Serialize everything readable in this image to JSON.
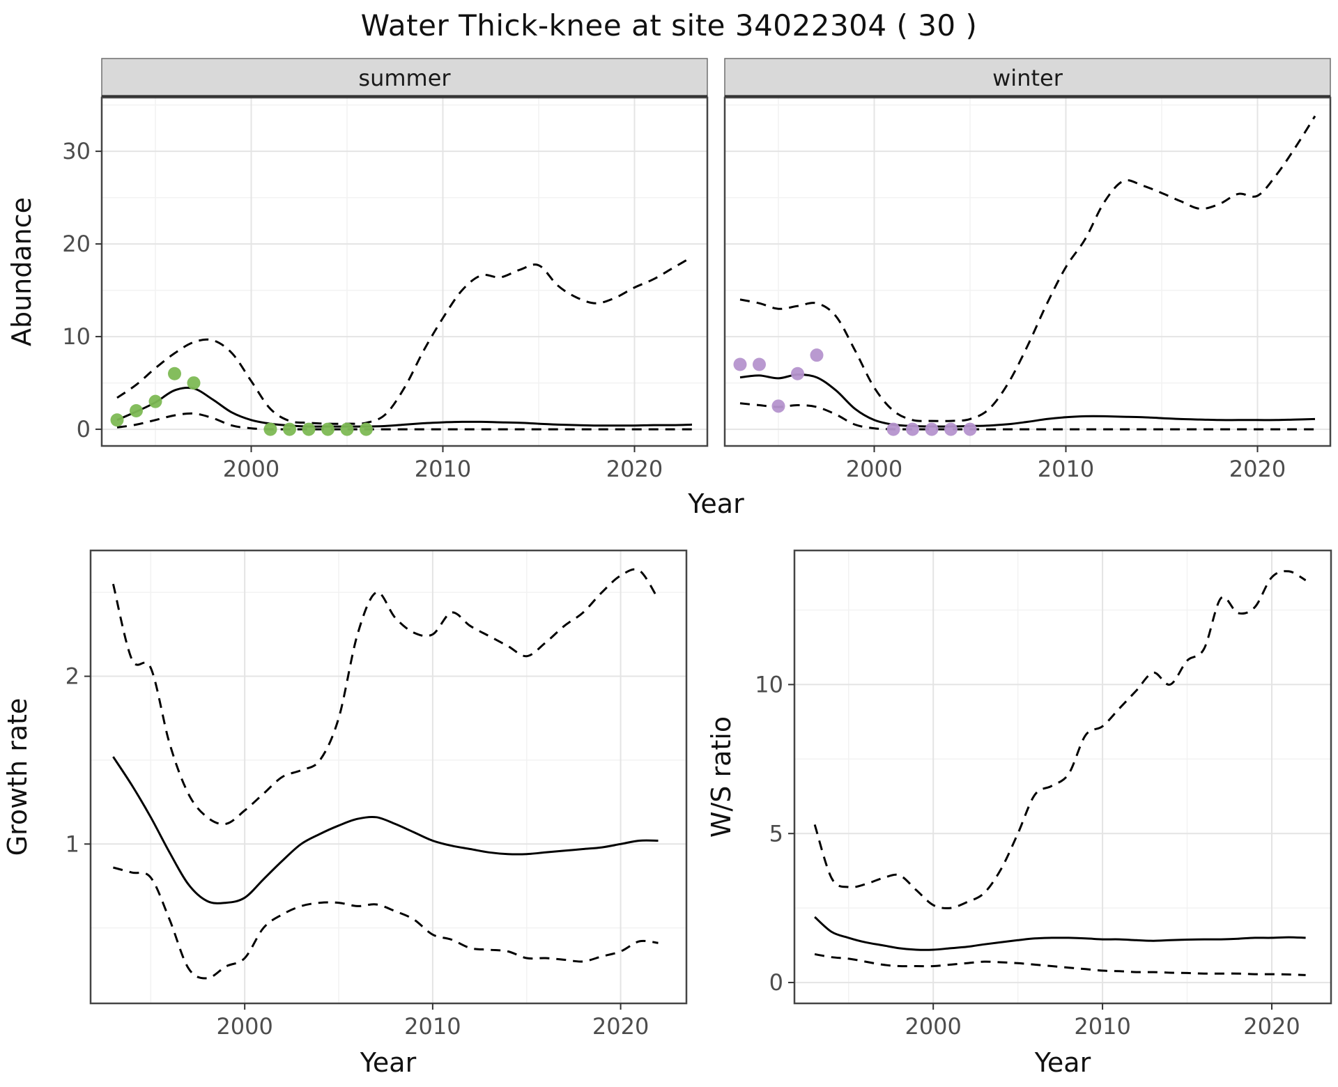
{
  "title": "Water Thick-knee at site 34022304 ( 30 )",
  "colors": {
    "line": "#000000",
    "summer_point": "#7db954",
    "winter_point": "#b593cd",
    "grid_major": "#e4e4e4",
    "grid_minor": "#f2f2f2",
    "panel_border": "#454545",
    "strip_bg": "#d9d9d9",
    "strip_edge": "#2b2b2b",
    "tick_label": "#4d4d4d",
    "axis_title": "#111111"
  },
  "figure": {
    "shared_x_label": "Year"
  },
  "chart_data": [
    {
      "id": "abundance_summer",
      "type": "line",
      "facet_label": "summer",
      "xlabel": "Year",
      "ylabel": "Abundance",
      "xlim": [
        1992.2,
        2023.8
      ],
      "ylim": [
        -1.8,
        35.8
      ],
      "xticks": [
        2000,
        2010,
        2020
      ],
      "yticks": [
        0,
        10,
        20,
        30
      ],
      "x": [
        1993,
        1994,
        1995,
        1996,
        1997,
        1998,
        1999,
        2000,
        2001,
        2002,
        2003,
        2004,
        2005,
        2006,
        2007,
        2008,
        2009,
        2010,
        2011,
        2012,
        2013,
        2014,
        2015,
        2016,
        2017,
        2018,
        2019,
        2020,
        2021,
        2022,
        2023
      ],
      "series": [
        {
          "name": "fit_mean",
          "style": "solid",
          "values": [
            1.0,
            1.9,
            2.9,
            4.2,
            4.4,
            3.2,
            1.8,
            1.0,
            0.6,
            0.4,
            0.3,
            0.3,
            0.3,
            0.3,
            0.35,
            0.5,
            0.65,
            0.75,
            0.8,
            0.8,
            0.75,
            0.7,
            0.6,
            0.5,
            0.45,
            0.4,
            0.4,
            0.4,
            0.45,
            0.45,
            0.5
          ]
        },
        {
          "name": "ci_upper",
          "style": "dashed",
          "values": [
            3.4,
            4.8,
            6.6,
            8.2,
            9.4,
            9.6,
            8.2,
            5.2,
            2.2,
            0.9,
            0.7,
            0.6,
            0.6,
            0.7,
            1.6,
            4.5,
            8.5,
            12.0,
            15.0,
            16.6,
            16.4,
            17.2,
            17.7,
            15.5,
            14.2,
            13.6,
            14.2,
            15.3,
            16.2,
            17.4,
            18.6
          ]
        },
        {
          "name": "ci_lower",
          "style": "dashed",
          "values": [
            0.2,
            0.5,
            1.0,
            1.5,
            1.7,
            1.2,
            0.4,
            0.1,
            0,
            0,
            0,
            0,
            0,
            0,
            0,
            0,
            0,
            0,
            0,
            0,
            0,
            0,
            0,
            0,
            0,
            0,
            0,
            0,
            0,
            0,
            0
          ]
        }
      ],
      "points": {
        "name": "observed_counts",
        "color": "#7db954",
        "x": [
          1993,
          1994,
          1995,
          1996,
          1997,
          2001,
          2002,
          2003,
          2004,
          2005,
          2006
        ],
        "y": [
          1,
          2,
          3,
          6,
          5,
          0,
          0,
          0,
          0,
          0,
          0
        ]
      }
    },
    {
      "id": "abundance_winter",
      "type": "line",
      "facet_label": "winter",
      "xlabel": "Year",
      "ylabel": "Abundance",
      "xlim": [
        1992.2,
        2023.8
      ],
      "ylim": [
        -1.8,
        35.8
      ],
      "xticks": [
        2000,
        2010,
        2020
      ],
      "yticks": [
        0,
        10,
        20,
        30
      ],
      "x": [
        1993,
        1994,
        1995,
        1996,
        1997,
        1998,
        1999,
        2000,
        2001,
        2002,
        2003,
        2004,
        2005,
        2006,
        2007,
        2008,
        2009,
        2010,
        2011,
        2012,
        2013,
        2014,
        2015,
        2016,
        2017,
        2018,
        2019,
        2020,
        2021,
        2022,
        2023
      ],
      "series": [
        {
          "name": "fit_mean",
          "style": "solid",
          "values": [
            5.6,
            5.8,
            5.5,
            5.9,
            5.6,
            4.2,
            2.2,
            1.0,
            0.5,
            0.35,
            0.3,
            0.3,
            0.35,
            0.4,
            0.55,
            0.8,
            1.1,
            1.3,
            1.4,
            1.4,
            1.35,
            1.3,
            1.2,
            1.1,
            1.05,
            1.0,
            1.0,
            1.0,
            1.0,
            1.05,
            1.1
          ]
        },
        {
          "name": "ci_upper",
          "style": "dashed",
          "values": [
            14.0,
            13.6,
            13.0,
            13.3,
            13.6,
            12.2,
            8.5,
            4.5,
            2.0,
            1.0,
            0.9,
            0.9,
            1.1,
            2.2,
            5.0,
            9.0,
            13.5,
            17.5,
            20.5,
            24.5,
            26.8,
            26.3,
            25.5,
            24.6,
            23.8,
            24.3,
            25.4,
            25.2,
            27.5,
            30.5,
            33.8
          ]
        },
        {
          "name": "ci_lower",
          "style": "dashed",
          "values": [
            2.8,
            2.6,
            2.4,
            2.6,
            2.4,
            1.6,
            0.5,
            0.1,
            0,
            0,
            0,
            0,
            0,
            0,
            0,
            0,
            0,
            0,
            0,
            0,
            0,
            0,
            0,
            0,
            0,
            0,
            0,
            0,
            0,
            0,
            0
          ]
        }
      ],
      "points": {
        "name": "observed_counts",
        "color": "#b593cd",
        "x": [
          1993,
          1994,
          1995,
          1996,
          1997,
          2001,
          2002,
          2003,
          2004,
          2005
        ],
        "y": [
          7,
          7,
          2.5,
          6,
          8,
          0,
          0,
          0,
          0,
          0
        ]
      }
    },
    {
      "id": "growth_rate",
      "type": "line",
      "facet_label": null,
      "xlabel": "Year",
      "ylabel": "Growth rate",
      "xlim": [
        1991.8,
        2023.5
      ],
      "ylim": [
        0.05,
        2.75
      ],
      "xticks": [
        2000,
        2010,
        2020
      ],
      "yticks": [
        1,
        2
      ],
      "x": [
        1993,
        1994,
        1995,
        1996,
        1997,
        1998,
        1999,
        2000,
        2001,
        2002,
        2003,
        2004,
        2005,
        2006,
        2007,
        2008,
        2009,
        2010,
        2011,
        2012,
        2013,
        2014,
        2015,
        2016,
        2017,
        2018,
        2019,
        2020,
        2021,
        2022
      ],
      "series": [
        {
          "name": "fit_mean",
          "style": "solid",
          "values": [
            1.52,
            1.35,
            1.16,
            0.95,
            0.76,
            0.66,
            0.65,
            0.68,
            0.79,
            0.9,
            1.0,
            1.06,
            1.11,
            1.15,
            1.16,
            1.12,
            1.07,
            1.02,
            0.99,
            0.97,
            0.95,
            0.94,
            0.94,
            0.95,
            0.96,
            0.97,
            0.98,
            1.0,
            1.02,
            1.02
          ]
        },
        {
          "name": "ci_upper",
          "style": "dashed",
          "values": [
            2.55,
            2.1,
            2.05,
            1.6,
            1.3,
            1.16,
            1.12,
            1.2,
            1.3,
            1.4,
            1.44,
            1.5,
            1.75,
            2.25,
            2.5,
            2.35,
            2.26,
            2.25,
            2.38,
            2.3,
            2.24,
            2.18,
            2.12,
            2.2,
            2.3,
            2.38,
            2.5,
            2.6,
            2.63,
            2.46
          ]
        },
        {
          "name": "ci_lower",
          "style": "dashed",
          "values": [
            0.86,
            0.83,
            0.8,
            0.55,
            0.26,
            0.2,
            0.27,
            0.32,
            0.5,
            0.58,
            0.63,
            0.65,
            0.65,
            0.63,
            0.64,
            0.6,
            0.55,
            0.46,
            0.43,
            0.38,
            0.37,
            0.36,
            0.32,
            0.32,
            0.31,
            0.3,
            0.33,
            0.36,
            0.42,
            0.41
          ]
        }
      ],
      "points": null
    },
    {
      "id": "ws_ratio",
      "type": "line",
      "facet_label": null,
      "xlabel": "Year",
      "ylabel": "W/S ratio",
      "xlim": [
        1991.8,
        2023.5
      ],
      "ylim": [
        -0.7,
        14.5
      ],
      "xticks": [
        2000,
        2010,
        2020
      ],
      "yticks": [
        0,
        5,
        10
      ],
      "x": [
        1993,
        1994,
        1995,
        1996,
        1997,
        1998,
        1999,
        2000,
        2001,
        2002,
        2003,
        2004,
        2005,
        2006,
        2007,
        2008,
        2009,
        2010,
        2011,
        2012,
        2013,
        2014,
        2015,
        2016,
        2017,
        2018,
        2019,
        2020,
        2021,
        2022
      ],
      "series": [
        {
          "name": "fit_mean",
          "style": "solid",
          "values": [
            2.2,
            1.7,
            1.5,
            1.35,
            1.25,
            1.15,
            1.1,
            1.1,
            1.15,
            1.2,
            1.28,
            1.35,
            1.42,
            1.48,
            1.5,
            1.5,
            1.48,
            1.45,
            1.45,
            1.42,
            1.4,
            1.42,
            1.44,
            1.45,
            1.45,
            1.47,
            1.5,
            1.5,
            1.52,
            1.5
          ]
        },
        {
          "name": "ci_upper",
          "style": "dashed",
          "values": [
            5.3,
            3.5,
            3.2,
            3.3,
            3.5,
            3.6,
            3.1,
            2.6,
            2.5,
            2.7,
            3.0,
            3.8,
            5.0,
            6.3,
            6.6,
            7.0,
            8.3,
            8.6,
            9.2,
            9.8,
            10.4,
            10.0,
            10.8,
            11.2,
            12.9,
            12.4,
            12.6,
            13.6,
            13.8,
            13.5
          ]
        },
        {
          "name": "ci_lower",
          "style": "dashed",
          "values": [
            0.95,
            0.85,
            0.8,
            0.7,
            0.6,
            0.55,
            0.55,
            0.55,
            0.6,
            0.65,
            0.7,
            0.68,
            0.65,
            0.6,
            0.55,
            0.5,
            0.45,
            0.4,
            0.38,
            0.35,
            0.35,
            0.33,
            0.32,
            0.3,
            0.3,
            0.3,
            0.28,
            0.28,
            0.27,
            0.25
          ]
        }
      ],
      "points": null
    }
  ]
}
